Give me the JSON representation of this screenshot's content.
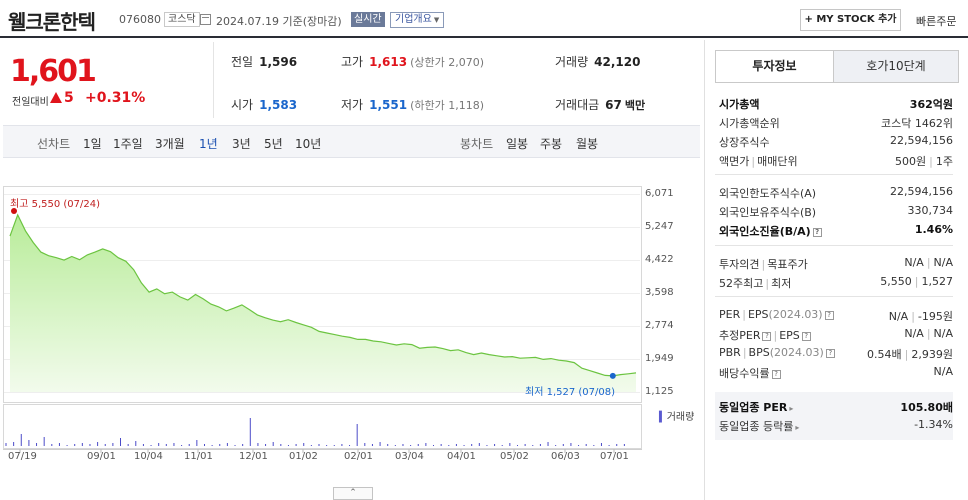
{
  "header": {
    "name": "웰크론한텍",
    "code": "076080",
    "market": "코스닥",
    "asof": "2024.07.19  기준(장마감)",
    "live_badge": "실시간",
    "company_btn": "기업개요",
    "mystock_btn": "MY STOCK 추가",
    "quick_order": "빠른주문"
  },
  "quote": {
    "price": "1,601",
    "change_label": "전일대비",
    "change": "5",
    "change_pct": "+0.31%",
    "prev_label": "전일",
    "prev": "1,596",
    "high_label": "고가",
    "high": "1,613",
    "upper_limit": "(상한가 2,070)",
    "volume_label": "거래량",
    "volume": "42,120",
    "open_label": "시가",
    "open": "1,583",
    "low_label": "저가",
    "low": "1,551",
    "lower_limit": "(하한가 1,118)",
    "amount_label": "거래대금",
    "amount": "67",
    "amount_unit": "백만"
  },
  "period_bar": {
    "line_label": "선차트",
    "periods": [
      "1일",
      "1주일",
      "3개월",
      "1년",
      "3년",
      "5년",
      "10년"
    ],
    "selected": "1년",
    "candle_label": "봉차트",
    "candles": [
      "일봉",
      "주봉",
      "월봉"
    ]
  },
  "chart_data": {
    "type": "area",
    "x_start": "2023-07-19",
    "x_end": "2024-07-19",
    "x_tick_labels": [
      "07/19",
      "09/01",
      "10/04",
      "11/01",
      "12/01",
      "01/02",
      "02/01",
      "03/04",
      "04/01",
      "05/02",
      "06/03",
      "07/01"
    ],
    "y_tick_labels": [
      "6,071",
      "5,247",
      "4,422",
      "3,598",
      "2,774",
      "1,949",
      "1,125"
    ],
    "ylim": [
      1125,
      6071
    ],
    "high_label": "최고 5,550 (07/24)",
    "low_label": "최저 1,527 (07/08)",
    "volume_label": "거래량",
    "price_series": [
      5020,
      5550,
      5150,
      4860,
      4620,
      4530,
      4480,
      4420,
      4510,
      4430,
      4550,
      4620,
      4700,
      4630,
      4480,
      4390,
      4180,
      3850,
      3620,
      3700,
      3580,
      3620,
      3500,
      3420,
      3560,
      3450,
      3320,
      3250,
      3150,
      3220,
      3300,
      3180,
      3050,
      2980,
      2920,
      2880,
      2930,
      2860,
      2800,
      2740,
      2640,
      2600,
      2560,
      2520,
      2490,
      2440,
      2440,
      2400,
      2380,
      2340,
      2300,
      2330,
      2310,
      2220,
      2240,
      2250,
      2210,
      2160,
      2180,
      2110,
      2060,
      2100,
      2060,
      2030,
      2000,
      2010,
      1970,
      1980,
      1990,
      1940,
      1960,
      1920,
      1900,
      1860,
      1720,
      1660,
      1600,
      1540,
      1527,
      1560,
      1580,
      1601
    ]
  },
  "tabs": [
    "투자정보",
    "호가10단계"
  ],
  "info": {
    "s1": [
      {
        "k": "시가총액",
        "v": "362억원"
      },
      {
        "k": "시가총액순위",
        "v": "코스닥 1462위"
      },
      {
        "k": "상장주식수",
        "v": "22,594,156"
      },
      {
        "k1": "액면가",
        "k2": "매매단위",
        "v1": "500원",
        "v2": "1주"
      }
    ],
    "s2": [
      {
        "k": "외국인한도주식수(A)",
        "v": "22,594,156"
      },
      {
        "k": "외국인보유주식수(B)",
        "v": "330,734"
      },
      {
        "k": "외국인소진율(B/A)",
        "v": "1.46%"
      }
    ],
    "s3": [
      {
        "k1": "투자의견",
        "k2": "목표주가",
        "v1": "N/A",
        "v2": "N/A"
      },
      {
        "k1": "52주최고",
        "k2": "최저",
        "v1": "5,550",
        "v2": "1,527"
      }
    ],
    "s4": [
      {
        "k1": "PER",
        "k2": "EPS",
        "n": "(2024.03)",
        "v1": "N/A",
        "v2": "-195원"
      },
      {
        "k1": "추정PER",
        "k2": "EPS",
        "v1": "N/A",
        "v2": "N/A"
      },
      {
        "k1": "PBR",
        "k2": "BPS",
        "n": "(2024.03)",
        "v1": "0.54배",
        "v2": "2,939원"
      },
      {
        "k": "배당수익률",
        "v": "N/A"
      }
    ],
    "peer": [
      {
        "k": "동일업종 PER",
        "v": "105.80배"
      },
      {
        "k": "동일업종 등락률",
        "v": "-1.34%"
      }
    ]
  }
}
